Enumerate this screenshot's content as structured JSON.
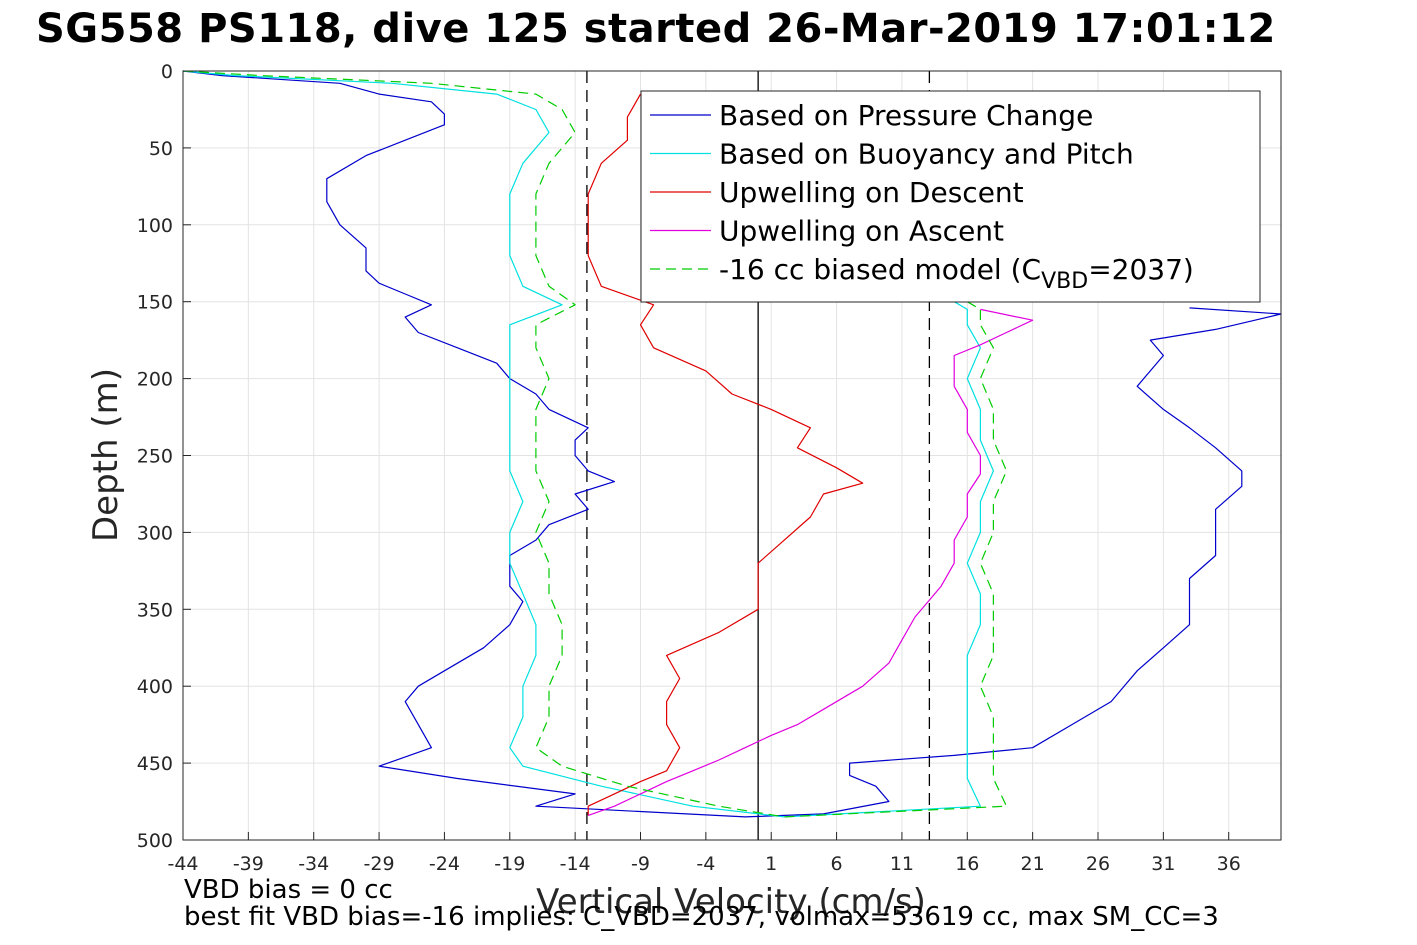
{
  "title": "SG558 PS118, dive 125 started 26-Mar-2019 17:01:12",
  "notes": {
    "line1": "VBD bias = 0 cc",
    "line2": "best fit VBD bias=-16 implies: C_VBD=2037, volmax=53619 cc, max SM_CC=3"
  },
  "chart_data": {
    "type": "line",
    "xlabel": "Vertical Velocity (cm/s)",
    "ylabel": "Depth (m)",
    "xlim": [
      -44,
      40
    ],
    "ylim": [
      0,
      500
    ],
    "y_reversed": true,
    "grid": true,
    "legend_placement": "top-right",
    "xticks": [
      -44,
      -39,
      -34,
      -29,
      -24,
      -19,
      -14,
      -9,
      -4,
      1,
      6,
      11,
      16,
      21,
      26,
      31,
      36
    ],
    "yticks": [
      0,
      50,
      100,
      150,
      200,
      250,
      300,
      350,
      400,
      450,
      500
    ],
    "reference_lines": [
      {
        "x": 0.0,
        "style": "solid",
        "color": "#000000"
      },
      {
        "x": -13.1,
        "style": "dashed",
        "color": "#000000"
      },
      {
        "x": 13.1,
        "style": "dashed",
        "color": "#000000"
      }
    ],
    "series": [
      {
        "name": "Based on Pressure Change",
        "color": "#0000cc",
        "style": "solid",
        "depth": [
          0,
          3,
          8,
          15,
          20,
          28,
          35,
          45,
          55,
          70,
          85,
          100,
          115,
          130,
          138,
          145,
          152,
          160,
          170,
          180,
          190,
          200,
          210,
          220,
          232,
          240,
          250,
          260,
          267,
          275,
          285,
          295,
          305,
          315,
          325,
          335,
          345,
          360,
          375,
          390,
          400,
          410,
          425,
          440,
          452,
          460,
          470,
          478,
          485,
          483,
          475,
          465,
          458,
          450,
          445,
          440,
          425,
          410,
          400,
          390,
          375,
          360,
          345,
          330,
          315,
          300,
          285,
          270,
          260,
          245,
          232,
          220,
          205,
          195,
          185,
          175,
          168,
          162,
          158,
          154
        ],
        "v": [
          -44,
          -41,
          -32,
          -29,
          -25,
          -24,
          -24,
          -27,
          -30,
          -33,
          -33,
          -32,
          -30,
          -30,
          -29,
          -27,
          -25,
          -27,
          -26,
          -23,
          -20,
          -19,
          -17,
          -16,
          -13,
          -14,
          -14,
          -13,
          -11,
          -14,
          -13,
          -16,
          -17,
          -19,
          -19,
          -19,
          -18,
          -19,
          -21,
          -24,
          -26,
          -27,
          -26,
          -25,
          -29,
          -23,
          -14,
          -17,
          -1,
          5,
          10,
          9,
          7,
          7,
          15,
          21,
          24,
          27,
          28,
          29,
          31,
          33,
          33,
          33,
          35,
          35,
          35,
          37,
          37,
          35,
          33,
          31,
          29,
          30,
          31,
          30,
          35,
          38,
          40,
          33
        ]
      },
      {
        "name": "Based on Buoyancy and Pitch",
        "color": "#00e0e0",
        "style": "solid",
        "depth": [
          0,
          3,
          8,
          15,
          25,
          40,
          60,
          80,
          100,
          120,
          140,
          152,
          165,
          180,
          200,
          220,
          240,
          260,
          280,
          300,
          320,
          340,
          360,
          380,
          400,
          420,
          440,
          452,
          465,
          478,
          485,
          478,
          460,
          440,
          420,
          400,
          380,
          360,
          340,
          320,
          300,
          280,
          260,
          240,
          220,
          200,
          180,
          165,
          155,
          150
        ],
        "v": [
          -44,
          -40,
          -28,
          -20,
          -17,
          -16,
          -18,
          -19,
          -19,
          -19,
          -18,
          -15,
          -19,
          -19,
          -19,
          -19,
          -19,
          -19,
          -18,
          -19,
          -19,
          -18,
          -17,
          -17,
          -18,
          -18,
          -19,
          -18,
          -12,
          -5,
          2,
          17,
          16,
          16,
          16,
          16,
          16,
          17,
          17,
          16,
          17,
          17,
          18,
          17,
          17,
          16,
          17,
          16,
          16,
          15
        ]
      },
      {
        "name": "Upwelling on Descent",
        "color": "#e00000",
        "style": "solid",
        "depth": [
          15,
          30,
          45,
          60,
          80,
          100,
          120,
          140,
          152,
          165,
          180,
          195,
          210,
          220,
          232,
          245,
          258,
          268,
          275,
          290,
          305,
          320,
          335,
          350,
          365,
          380,
          395,
          410,
          425,
          440,
          455,
          462,
          470,
          478,
          484
        ],
        "v": [
          -9,
          -10,
          -10,
          -12,
          -13,
          -13,
          -13,
          -12,
          -8,
          -9,
          -8,
          -4,
          -2,
          1,
          4,
          3,
          6,
          8,
          5,
          4,
          2,
          0,
          0,
          0,
          -3,
          -7,
          -6,
          -7,
          -7,
          -6,
          -7,
          -9,
          -11,
          -13,
          -13
        ]
      },
      {
        "name": "Upwelling on Ascent",
        "color": "#e000e0",
        "style": "solid",
        "depth": [
          484,
          478,
          470,
          462,
          455,
          448,
          440,
          432,
          425,
          415,
          400,
          385,
          370,
          355,
          345,
          335,
          320,
          305,
          290,
          275,
          262,
          250,
          235,
          220,
          205,
          195,
          185,
          178,
          170,
          162,
          155
        ],
        "v": [
          -13,
          -11,
          -9,
          -7,
          -5,
          -3,
          -1,
          1,
          3,
          5,
          8,
          10,
          11,
          12,
          13,
          14,
          15,
          15,
          16,
          16,
          17,
          17,
          16,
          16,
          15,
          15,
          15,
          17,
          19,
          21,
          17
        ]
      },
      {
        "name": "-16 cc biased model (C_VBD=2037)",
        "color": "#00cc00",
        "style": "dashed",
        "depth": [
          0,
          3,
          8,
          15,
          25,
          40,
          60,
          80,
          100,
          120,
          140,
          152,
          165,
          180,
          200,
          220,
          240,
          260,
          280,
          300,
          320,
          340,
          360,
          380,
          400,
          420,
          440,
          452,
          465,
          478,
          485,
          478,
          460,
          440,
          420,
          400,
          380,
          360,
          340,
          320,
          300,
          280,
          260,
          240,
          220,
          200,
          180,
          165,
          155,
          150
        ],
        "v": [
          -44,
          -38,
          -25,
          -17,
          -15,
          -14,
          -16,
          -17,
          -17,
          -17,
          -16,
          -14,
          -17,
          -17,
          -16,
          -17,
          -17,
          -17,
          -16,
          -17,
          -16,
          -16,
          -15,
          -15,
          -16,
          -16,
          -17,
          -15,
          -10,
          -3,
          2,
          19,
          18,
          18,
          18,
          17,
          18,
          18,
          18,
          17,
          18,
          18,
          19,
          18,
          18,
          17,
          18,
          17,
          17,
          16
        ]
      }
    ],
    "legend": {
      "entries": [
        {
          "text": "Based on Pressure Change",
          "color": "#0000cc",
          "style": "solid"
        },
        {
          "text": "Based on Buoyancy and Pitch",
          "color": "#00e0e0",
          "style": "solid"
        },
        {
          "text": "Upwelling on Descent",
          "color": "#e00000",
          "style": "solid"
        },
        {
          "text": "Upwelling on Ascent",
          "color": "#e000e0",
          "style": "solid"
        },
        {
          "text": "-16 cc biased model (C",
          "sub": "VBD",
          "tail": "=2037)",
          "color": "#00cc00",
          "style": "dashed"
        }
      ]
    }
  }
}
